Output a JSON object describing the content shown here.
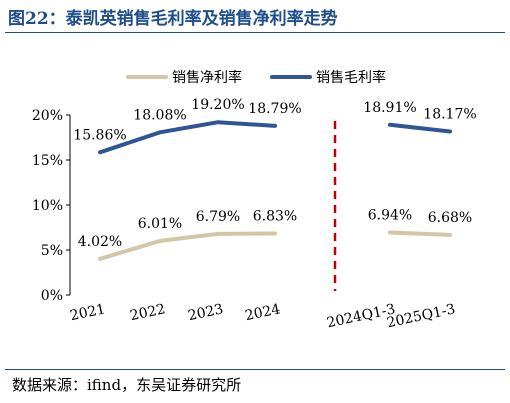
{
  "figure": {
    "title": "图22：泰凯英销售毛利率及销售净利率走势",
    "source": "数据来源：ifind，东吴证券研究所"
  },
  "colors": {
    "title": "#1f4e8c",
    "gross_margin": "#2f5597",
    "net_margin": "#d3c6a6",
    "divider": "#c00000"
  },
  "chart_data": {
    "type": "line",
    "categories": [
      "2021",
      "2022",
      "2023",
      "2024",
      "2024Q1-3",
      "2025Q1-3"
    ],
    "ylim": [
      0,
      20
    ],
    "yticks": [
      "0%",
      "5%",
      "10%",
      "15%",
      "20%"
    ],
    "xlabel": "",
    "ylabel": "",
    "grid": false,
    "legend_position": "top",
    "divider": "dashed vertical line between 2024 and 2024Q1-3",
    "series": [
      {
        "name": "销售净利率",
        "segments": [
          [
            0,
            1,
            2,
            3
          ],
          [
            4,
            5
          ]
        ],
        "values": [
          4.02,
          6.01,
          6.79,
          6.83,
          6.94,
          6.68
        ],
        "labels": [
          "4.02%",
          "6.01%",
          "6.79%",
          "6.83%",
          "6.94%",
          "6.68%"
        ]
      },
      {
        "name": "销售毛利率",
        "segments": [
          [
            0,
            1,
            2,
            3
          ],
          [
            4,
            5
          ]
        ],
        "values": [
          15.86,
          18.08,
          19.2,
          18.79,
          18.91,
          18.17
        ],
        "labels": [
          "15.86%",
          "18.08%",
          "19.20%",
          "18.79%",
          "18.91%",
          "18.17%"
        ]
      }
    ]
  }
}
